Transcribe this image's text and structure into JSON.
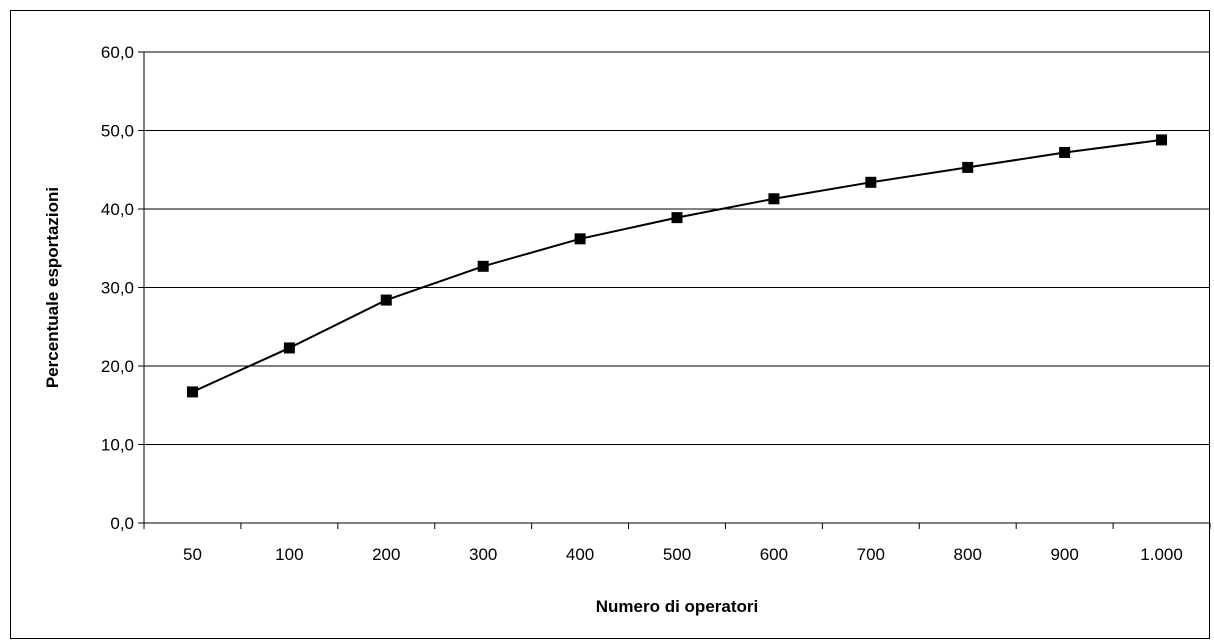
{
  "chart_data": {
    "type": "line",
    "title": "",
    "xlabel": "Numero di operatori",
    "ylabel": "Percentuale esportazioni",
    "categories": [
      "50",
      "100",
      "200",
      "300",
      "400",
      "500",
      "600",
      "700",
      "800",
      "900",
      "1.000"
    ],
    "series": [
      {
        "values": [
          16.7,
          22.3,
          28.4,
          32.7,
          36.2,
          38.9,
          41.3,
          43.4,
          45.3,
          47.2,
          48.8
        ],
        "color": "#000000",
        "marker": "square"
      }
    ],
    "ylim": [
      0,
      60
    ],
    "yticks": [
      "0,0",
      "10,0",
      "20,0",
      "30,0",
      "40,0",
      "50,0",
      "60,0"
    ],
    "grid": "horizontal major gridlines",
    "legend": "none"
  }
}
